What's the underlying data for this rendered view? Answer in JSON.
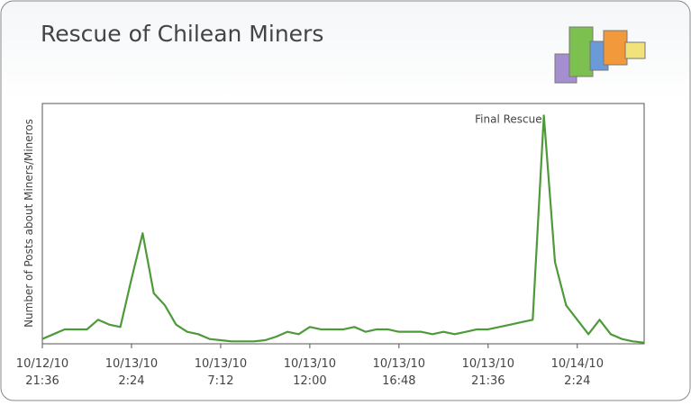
{
  "chart_data": {
    "type": "line",
    "title": "Rescue of Chilean Miners",
    "y_label": "Number of Posts about Miners/Mineros",
    "x": [
      "2010-10-12T21:36",
      "2010-10-12T22:12",
      "2010-10-12T22:48",
      "2010-10-12T23:24",
      "2010-10-13T00:00",
      "2010-10-13T00:36",
      "2010-10-13T01:12",
      "2010-10-13T01:48",
      "2010-10-13T02:24",
      "2010-10-13T03:00",
      "2010-10-13T03:36",
      "2010-10-13T04:12",
      "2010-10-13T04:48",
      "2010-10-13T05:24",
      "2010-10-13T06:00",
      "2010-10-13T06:36",
      "2010-10-13T07:12",
      "2010-10-13T07:48",
      "2010-10-13T08:24",
      "2010-10-13T09:00",
      "2010-10-13T09:36",
      "2010-10-13T10:12",
      "2010-10-13T10:48",
      "2010-10-13T11:24",
      "2010-10-13T12:00",
      "2010-10-13T12:36",
      "2010-10-13T13:12",
      "2010-10-13T13:48",
      "2010-10-13T14:24",
      "2010-10-13T15:00",
      "2010-10-13T15:36",
      "2010-10-13T16:12",
      "2010-10-13T16:48",
      "2010-10-13T17:24",
      "2010-10-13T18:00",
      "2010-10-13T18:36",
      "2010-10-13T19:12",
      "2010-10-13T19:48",
      "2010-10-13T20:24",
      "2010-10-13T21:00",
      "2010-10-13T21:36",
      "2010-10-13T22:12",
      "2010-10-13T22:48",
      "2010-10-13T23:24",
      "2010-10-14T00:00",
      "2010-10-14T00:36",
      "2010-10-14T01:12",
      "2010-10-14T01:48",
      "2010-10-14T02:24",
      "2010-10-14T03:00",
      "2010-10-14T03:36",
      "2010-10-14T04:12",
      "2010-10-14T04:48",
      "2010-10-14T05:24",
      "2010-10-14T06:00"
    ],
    "series": [
      {
        "color": "#4e9a3a",
        "values": [
          2,
          4,
          6,
          6,
          6,
          10,
          8,
          7,
          27,
          46,
          21,
          16,
          8,
          5,
          4,
          2,
          1.5,
          1,
          1,
          1,
          1.5,
          3,
          5,
          4,
          7,
          6,
          6,
          6,
          7,
          5,
          6,
          6,
          5,
          5,
          5,
          4,
          5,
          4,
          5,
          6,
          6,
          7,
          8,
          9,
          10,
          95,
          34,
          16,
          10,
          4,
          10,
          4,
          2,
          1,
          0.5
        ]
      }
    ],
    "xlim": [
      "2010-10-12T21:36",
      "2010-10-14T06:00"
    ],
    "ylim": [
      0,
      100
    ],
    "xticks": [
      {
        "value": "2010-10-12T21:36",
        "label": "10/12/10 21:36"
      },
      {
        "value": "2010-10-13T02:24",
        "label": "10/13/10 2:24"
      },
      {
        "value": "2010-10-13T07:12",
        "label": "10/13/10 7:12"
      },
      {
        "value": "2010-10-13T12:00",
        "label": "10/13/10 12:00"
      },
      {
        "value": "2010-10-13T16:48",
        "label": "10/13/10 16:48"
      },
      {
        "value": "2010-10-13T21:36",
        "label": "10/13/10 21:36"
      },
      {
        "value": "2010-10-14T02:24",
        "label": "10/14/10 2:24"
      }
    ],
    "annotations": [
      {
        "text": "Final Rescue",
        "x": "2010-10-14T00:36"
      }
    ]
  }
}
